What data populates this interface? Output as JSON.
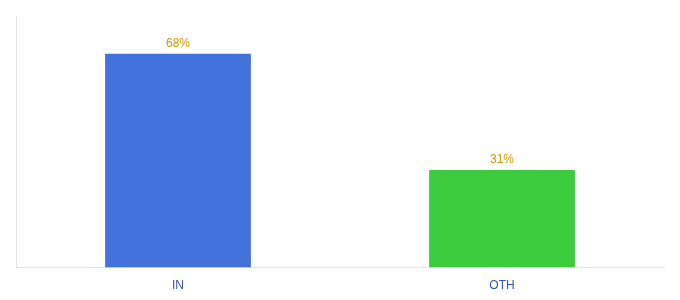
{
  "chart_data": {
    "type": "bar",
    "categories": [
      "IN",
      "OTH"
    ],
    "values": [
      68,
      31
    ],
    "value_labels": [
      "68%",
      "31%"
    ],
    "colors": [
      "#4472db",
      "#3dcc3d"
    ],
    "ylim": [
      0,
      80
    ],
    "grid": false,
    "data_labels": true,
    "tick_labels": "x"
  }
}
